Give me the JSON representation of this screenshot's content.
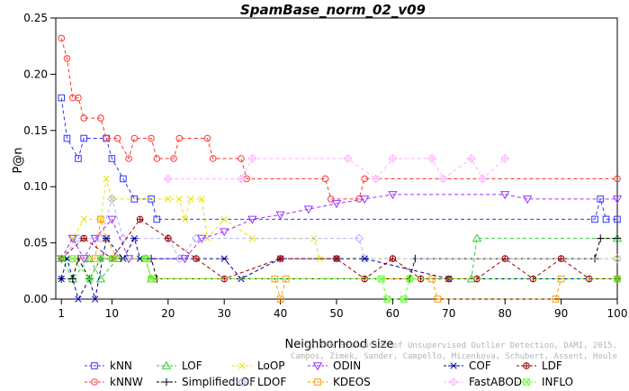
{
  "chart_data": {
    "type": "line",
    "title": "SpamBase_norm_02_v09",
    "xlabel": "Neighborhood size",
    "ylabel": "P@n",
    "xlim": [
      0,
      100
    ],
    "ylim": [
      0,
      0.25
    ],
    "x_ticks": [
      1,
      10,
      20,
      30,
      40,
      50,
      60,
      70,
      80,
      90,
      100
    ],
    "y_ticks": [
      0.0,
      0.05,
      0.1,
      0.15,
      0.2,
      0.25
    ],
    "y_tick_labels": [
      "0.00",
      "0.05",
      "0.10",
      "0.15",
      "0.20",
      "0.25"
    ],
    "watermark": [
      "Campos, Zimek, Sander, Campello, Micenkova, Schubert, Assent, Houle",
      "On the Evaluation of Unsupervised Outlier Detection, DAMI, 2015."
    ],
    "legend_position": "bottom",
    "series": [
      {
        "name": "kNN",
        "color": "#3333ff",
        "marker": "square",
        "points": [
          [
            1,
            0.179
          ],
          [
            2,
            0.143
          ],
          [
            4,
            0.125
          ],
          [
            5,
            0.143
          ],
          [
            9,
            0.143
          ],
          [
            10,
            0.125
          ],
          [
            12,
            0.107
          ],
          [
            14,
            0.089
          ],
          [
            17,
            0.089
          ],
          [
            18,
            0.071
          ],
          [
            96,
            0.071
          ],
          [
            97,
            0.089
          ],
          [
            98,
            0.071
          ],
          [
            100,
            0.071
          ]
        ]
      },
      {
        "name": "kNNW",
        "color": "#ff3333",
        "marker": "circle",
        "points": [
          [
            1,
            0.232
          ],
          [
            2,
            0.214
          ],
          [
            3,
            0.179
          ],
          [
            4,
            0.179
          ],
          [
            5,
            0.161
          ],
          [
            8,
            0.161
          ],
          [
            9,
            0.143
          ],
          [
            11,
            0.143
          ],
          [
            13,
            0.125
          ],
          [
            14,
            0.143
          ],
          [
            17,
            0.143
          ],
          [
            18,
            0.125
          ],
          [
            21,
            0.125
          ],
          [
            22,
            0.143
          ],
          [
            27,
            0.143
          ],
          [
            28,
            0.125
          ],
          [
            33,
            0.125
          ],
          [
            34,
            0.107
          ],
          [
            48,
            0.107
          ],
          [
            49,
            0.089
          ],
          [
            54,
            0.089
          ],
          [
            55,
            0.107
          ],
          [
            100,
            0.107
          ]
        ]
      },
      {
        "name": "LOF",
        "color": "#33cc33",
        "marker": "triangle",
        "points": [
          [
            1,
            0.036
          ],
          [
            3,
            0.018
          ],
          [
            6,
            0.036
          ],
          [
            8,
            0.018
          ],
          [
            11,
            0.036
          ],
          [
            16,
            0.036
          ],
          [
            17,
            0.018
          ],
          [
            74,
            0.018
          ],
          [
            75,
            0.054
          ],
          [
            100,
            0.054
          ]
        ]
      },
      {
        "name": "SimplifiedLOF",
        "color": "#000000",
        "marker": "plus",
        "points": [
          [
            1,
            0.018
          ],
          [
            3,
            0.018
          ],
          [
            4,
            0.036
          ],
          [
            6,
            0.018
          ],
          [
            8,
            0.036
          ],
          [
            17,
            0.036
          ],
          [
            18,
            0.018
          ],
          [
            63,
            0.018
          ],
          [
            64,
            0.036
          ],
          [
            96,
            0.036
          ],
          [
            97,
            0.054
          ],
          [
            100,
            0.054
          ]
        ]
      },
      {
        "name": "LoOP",
        "color": "#e6e600",
        "marker": "x",
        "points": [
          [
            1,
            0.036
          ],
          [
            3,
            0.054
          ],
          [
            5,
            0.071
          ],
          [
            8,
            0.071
          ],
          [
            9,
            0.107
          ],
          [
            10,
            0.089
          ],
          [
            20,
            0.089
          ],
          [
            22,
            0.089
          ],
          [
            23,
            0.071
          ],
          [
            24,
            0.089
          ],
          [
            26,
            0.089
          ],
          [
            27,
            0.054
          ],
          [
            30,
            0.071
          ],
          [
            35,
            0.054
          ],
          [
            46,
            0.054
          ],
          [
            47,
            0.036
          ],
          [
            100,
            0.036
          ]
        ]
      },
      {
        "name": "LDOF",
        "color": "#b3b3ff",
        "marker": "diamond",
        "points": [
          [
            1,
            0.036
          ],
          [
            4,
            0.054
          ],
          [
            8,
            0.054
          ],
          [
            10,
            0.089
          ],
          [
            12,
            0.054
          ],
          [
            20,
            0.054
          ],
          [
            22,
            0.036
          ],
          [
            25,
            0.054
          ],
          [
            54,
            0.054
          ],
          [
            55,
            0.036
          ],
          [
            100,
            0.036
          ]
        ]
      },
      {
        "name": "ODIN",
        "color": "#9933ff",
        "marker": "triangle-down",
        "points": [
          [
            1,
            0.036
          ],
          [
            3,
            0.054
          ],
          [
            5,
            0.036
          ],
          [
            7,
            0.054
          ],
          [
            10,
            0.071
          ],
          [
            13,
            0.036
          ],
          [
            23,
            0.036
          ],
          [
            26,
            0.054
          ],
          [
            30,
            0.06
          ],
          [
            35,
            0.071
          ],
          [
            40,
            0.075
          ],
          [
            45,
            0.08
          ],
          [
            50,
            0.085
          ],
          [
            55,
            0.089
          ],
          [
            60,
            0.093
          ],
          [
            80,
            0.093
          ],
          [
            84,
            0.089
          ],
          [
            100,
            0.089
          ]
        ]
      },
      {
        "name": "KDEOS",
        "color": "#ff9900",
        "marker": "square",
        "points": [
          [
            1,
            0.036
          ],
          [
            7,
            0.036
          ],
          [
            8,
            0.071
          ],
          [
            9,
            0.054
          ],
          [
            11,
            0.036
          ],
          [
            16,
            0.036
          ],
          [
            17,
            0.018
          ],
          [
            39,
            0.018
          ],
          [
            40,
            0.0
          ],
          [
            41,
            0.018
          ],
          [
            67,
            0.018
          ],
          [
            68,
            0.0
          ],
          [
            89,
            0.0
          ],
          [
            90,
            0.018
          ],
          [
            100,
            0.018
          ]
        ]
      },
      {
        "name": "COF",
        "color": "#000099",
        "marker": "asterisk",
        "points": [
          [
            1,
            0.018
          ],
          [
            2,
            0.036
          ],
          [
            4,
            0.0
          ],
          [
            6,
            0.018
          ],
          [
            7,
            0.0
          ],
          [
            9,
            0.054
          ],
          [
            12,
            0.036
          ],
          [
            14,
            0.054
          ],
          [
            15,
            0.036
          ],
          [
            30,
            0.036
          ],
          [
            33,
            0.018
          ],
          [
            40,
            0.036
          ],
          [
            50,
            0.036
          ],
          [
            55,
            0.036
          ],
          [
            70,
            0.018
          ],
          [
            100,
            0.018
          ]
        ]
      },
      {
        "name": "FastABOD",
        "color": "#ffb3ff",
        "marker": "plus-diamond",
        "points": [
          [
            20,
            0.107
          ],
          [
            33,
            0.107
          ],
          [
            35,
            0.125
          ],
          [
            52,
            0.125
          ],
          [
            57,
            0.107
          ],
          [
            60,
            0.125
          ],
          [
            67,
            0.125
          ],
          [
            69,
            0.107
          ],
          [
            74,
            0.125
          ],
          [
            76,
            0.107
          ],
          [
            80,
            0.125
          ]
        ]
      },
      {
        "name": "LDF",
        "color": "#990000",
        "marker": "circle-plus",
        "points": [
          [
            1,
            0.036
          ],
          [
            5,
            0.054
          ],
          [
            10,
            0.036
          ],
          [
            15,
            0.071
          ],
          [
            20,
            0.054
          ],
          [
            25,
            0.036
          ],
          [
            30,
            0.018
          ],
          [
            40,
            0.036
          ],
          [
            50,
            0.036
          ],
          [
            55,
            0.018
          ],
          [
            60,
            0.036
          ],
          [
            65,
            0.018
          ],
          [
            70,
            0.018
          ],
          [
            75,
            0.018
          ],
          [
            80,
            0.036
          ],
          [
            85,
            0.018
          ],
          [
            90,
            0.036
          ],
          [
            95,
            0.018
          ],
          [
            100,
            0.018
          ]
        ]
      },
      {
        "name": "INFLO",
        "color": "#66ff33",
        "marker": "square-x",
        "points": [
          [
            1,
            0.036
          ],
          [
            3,
            0.036
          ],
          [
            6,
            0.018
          ],
          [
            8,
            0.036
          ],
          [
            10,
            0.036
          ],
          [
            16,
            0.036
          ],
          [
            17,
            0.018
          ],
          [
            58,
            0.018
          ],
          [
            59,
            0.0
          ],
          [
            62,
            0.0
          ],
          [
            63,
            0.018
          ],
          [
            100,
            0.018
          ]
        ]
      }
    ]
  }
}
